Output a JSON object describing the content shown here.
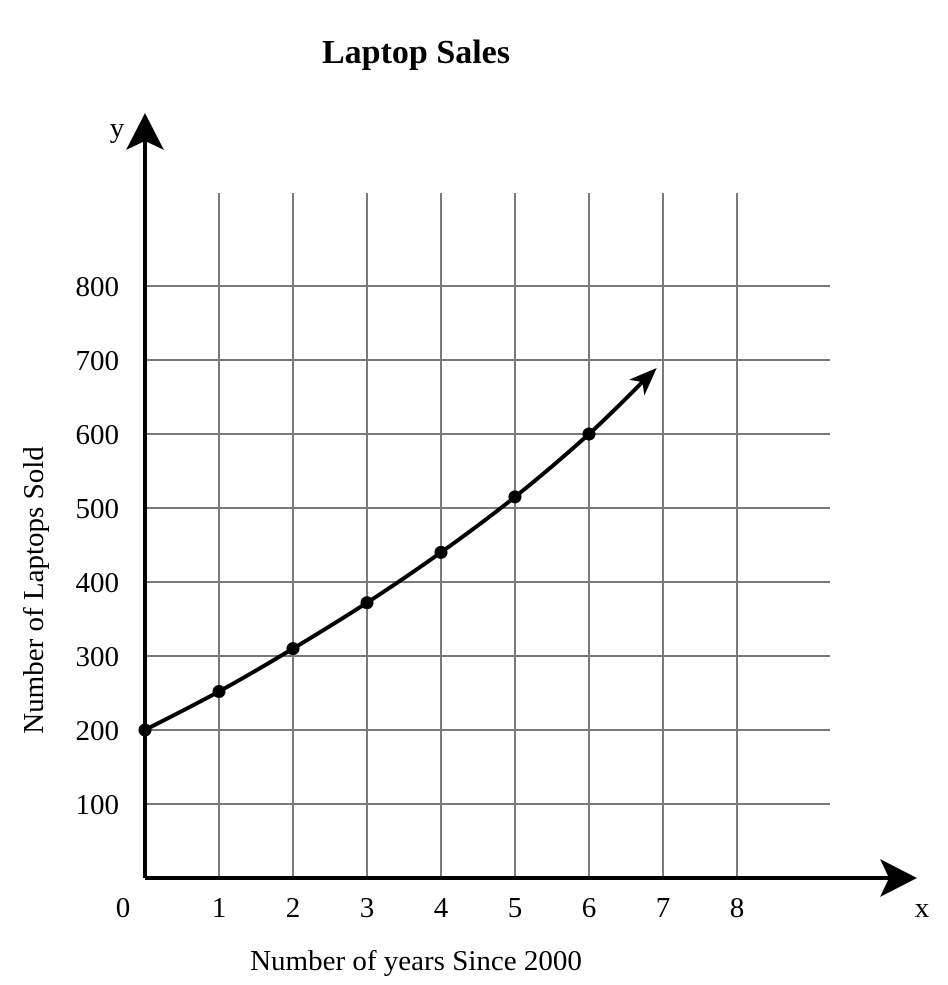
{
  "chart_data": {
    "type": "line",
    "title": "Laptop Sales",
    "xlabel": "Number of years Since 2000",
    "ylabel": "Number of Laptops Sold",
    "x_axis_letter": "x",
    "y_axis_letter": "y",
    "origin_label": "0",
    "xlim": [
      0,
      9
    ],
    "ylim": [
      0,
      1000
    ],
    "x_ticks": [
      1,
      2,
      3,
      4,
      5,
      6,
      7,
      8
    ],
    "y_ticks": [
      100,
      200,
      300,
      400,
      500,
      600,
      700,
      800
    ],
    "grid": true,
    "curve_arrow": true,
    "series": [
      {
        "x": [
          0,
          1,
          2,
          3,
          4,
          5,
          6
        ],
        "y": [
          200,
          252,
          310,
          372,
          440,
          515,
          600
        ]
      }
    ]
  }
}
